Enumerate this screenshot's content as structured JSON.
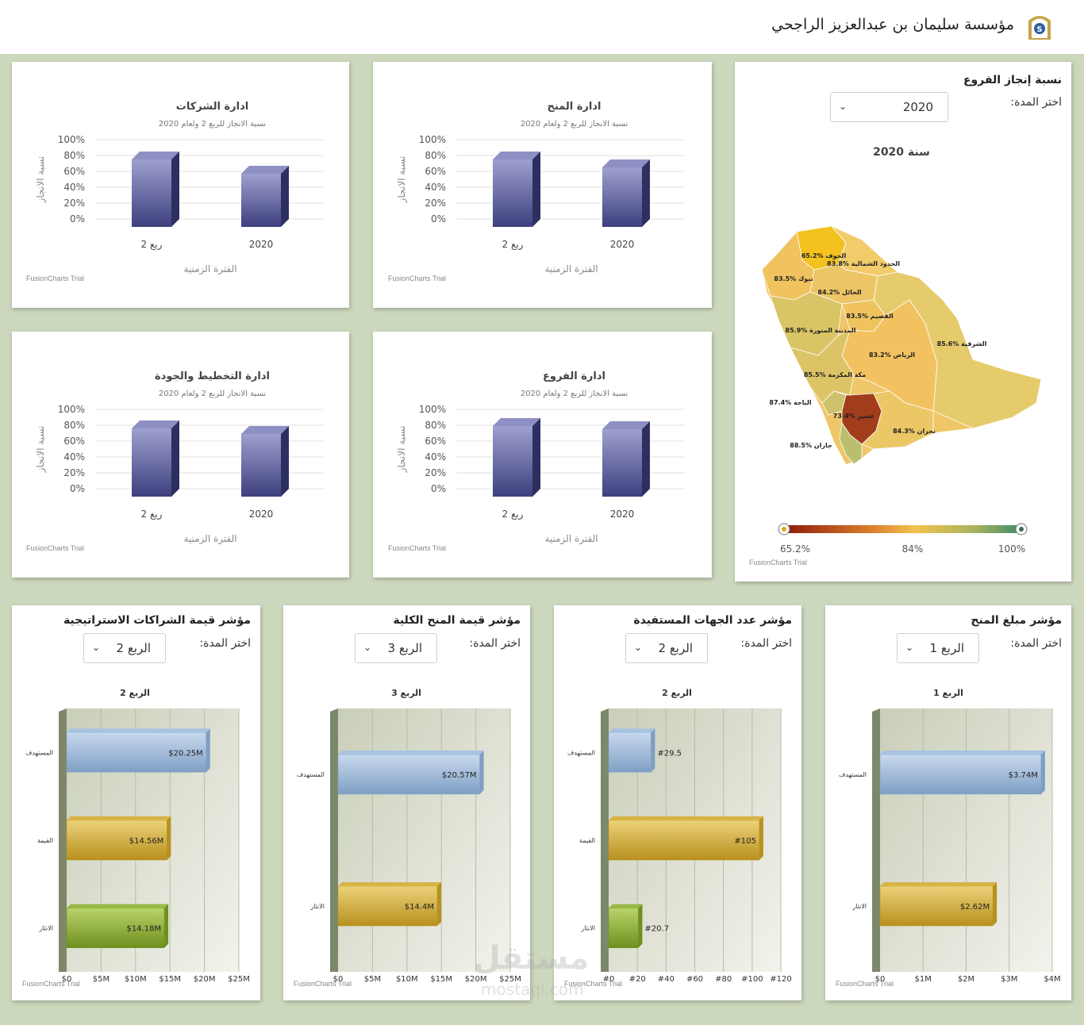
{
  "header": {
    "title": "مؤسسة سليمان بن عبدالعزيز الراجحي"
  },
  "trial_text": "FusionCharts Trial",
  "column_charts": [
    {
      "title": "ادارة الشركات",
      "subtitle": "نسبة الانجاز للربع 2 ولعام 2020",
      "ylabel": "نسبة الانجاز",
      "xlabel": "الفترة الزمنية",
      "yticks": [
        "100%",
        "80%",
        "60%",
        "40%",
        "20%",
        "0%"
      ],
      "categories": [
        "ربع 2",
        "2020"
      ],
      "values": [
        85,
        67
      ]
    },
    {
      "title": "ادارة المنح",
      "subtitle": "نسبة الانجاز للربع 2 ولعام 2020",
      "ylabel": "نسبة الانجاز",
      "xlabel": "الفترة الزمنية",
      "yticks": [
        "100%",
        "80%",
        "60%",
        "40%",
        "20%",
        "0%"
      ],
      "categories": [
        "ربع 2",
        "2020"
      ],
      "values": [
        85,
        75
      ]
    },
    {
      "title": "ادارة التخطيط والجودة",
      "subtitle": "نسبة الانجاز للربع 2 ولعام 2020",
      "ylabel": "نسبة الانجاز",
      "xlabel": "الفترة الزمنية",
      "yticks": [
        "100%",
        "80%",
        "60%",
        "40%",
        "20%",
        "0%"
      ],
      "categories": [
        "ربع 2",
        "2020"
      ],
      "values": [
        86,
        79
      ]
    },
    {
      "title": "ادارة الفروع",
      "subtitle": "نسبة الانجاز للربع 2 ولعام 2020",
      "ylabel": "نسبة الانجاز",
      "xlabel": "الفترة الزمنية",
      "yticks": [
        "100%",
        "80%",
        "60%",
        "40%",
        "20%",
        "0%"
      ],
      "categories": [
        "ربع 2",
        "2020"
      ],
      "values": [
        89,
        85
      ]
    }
  ],
  "map_panel": {
    "title": "نسبة إنجاز الفروع",
    "period_label": "اختر المدة:",
    "selected": "2020",
    "map_title": "سنة 2020",
    "regions": [
      {
        "name": "الجوف",
        "value": "65.2%",
        "color": "#f3c21f"
      },
      {
        "name": "الحدود الشمالية",
        "value": "83.8%",
        "color": "#f2cc6a"
      },
      {
        "name": "تبوك",
        "value": "83.5%",
        "color": "#f0c35f"
      },
      {
        "name": "الحائل",
        "value": "84.2%",
        "color": "#ecc566"
      },
      {
        "name": "القصيم",
        "value": "83.5%",
        "color": "#f0c35f"
      },
      {
        "name": "المدينة المنورة",
        "value": "85.9%",
        "color": "#d9c466"
      },
      {
        "name": "الشرقية",
        "value": "85.6%",
        "color": "#e6cb6c"
      },
      {
        "name": "الرياض",
        "value": "83.2%",
        "color": "#f3c260"
      },
      {
        "name": "مكة المكرمة",
        "value": "85.5%",
        "color": "#dcc466"
      },
      {
        "name": "الباحة",
        "value": "87.4%",
        "color": "#cdc269"
      },
      {
        "name": "عسير",
        "value": "73.4%",
        "color": "#a23d1c"
      },
      {
        "name": "نجران",
        "value": "84.3%",
        "color": "#ecc766"
      },
      {
        "name": "جازان",
        "value": "88.5%",
        "color": "#b9bf6c"
      }
    ],
    "legend": {
      "min": "65.2%",
      "mid": "84%",
      "max": "100%"
    }
  },
  "bar_charts": [
    {
      "title": "مؤشر قيمة الشراكات الاستراتيجية",
      "period_label": "اختر المدة:",
      "selected": "الربع 2",
      "chart_title": "الربع 2",
      "categories": [
        "المستهدف",
        "القيمة",
        "الانثار"
      ],
      "values": [
        20.25,
        14.56,
        14.18
      ],
      "labels": [
        "$20.25M",
        "$14.56M",
        "$14.18M"
      ],
      "colors": [
        "blue",
        "gold",
        "green"
      ],
      "xticks": [
        "$0",
        "$5M",
        "$10M",
        "$15M",
        "$20M",
        "$25M"
      ],
      "xmax": 25
    },
    {
      "title": "مؤشر قيمة المنح الكلية",
      "period_label": "اختر المدة:",
      "selected": "الربع 3",
      "chart_title": "الربع 3",
      "categories": [
        "المستهدف",
        "الانثار"
      ],
      "values": [
        20.57,
        14.4
      ],
      "labels": [
        "$20.57M",
        "$14.4M"
      ],
      "colors": [
        "blue",
        "gold"
      ],
      "xticks": [
        "$0",
        "$5M",
        "$10M",
        "$15M",
        "$20M",
        "$25M"
      ],
      "xmax": 25
    },
    {
      "title": "مؤشر عدد الجهات المستفيدة",
      "period_label": "اختر المدة:",
      "selected": "الربع 2",
      "chart_title": "الربع 2",
      "categories": [
        "المستهدف",
        "القيمة",
        "الانثار"
      ],
      "values": [
        29.5,
        105,
        20.7
      ],
      "labels": [
        "#29.5",
        "#105",
        "#20.7"
      ],
      "colors": [
        "blue",
        "gold",
        "green"
      ],
      "xticks": [
        "#0",
        "#20",
        "#40",
        "#60",
        "#80",
        "#100",
        "#120"
      ],
      "xmax": 120
    },
    {
      "title": "مؤشر مبلغ المنح",
      "period_label": "اختر المدة:",
      "selected": "الربع 1",
      "chart_title": "الربع 1",
      "categories": [
        "المستهدف",
        "الانثار"
      ],
      "values": [
        3.74,
        2.62
      ],
      "labels": [
        "$3.74M",
        "$2.62M"
      ],
      "colors": [
        "blue",
        "gold"
      ],
      "xticks": [
        "$0",
        "$1M",
        "$2M",
        "$3M",
        "$4M"
      ],
      "xmax": 4
    }
  ],
  "watermark": {
    "arabic": "مستقل",
    "latin": "mostaql.com"
  }
}
